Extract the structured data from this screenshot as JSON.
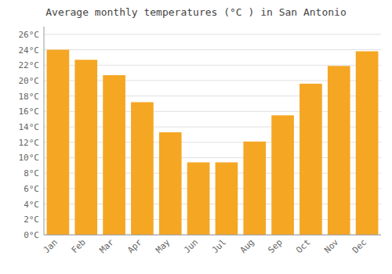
{
  "chart_data": {
    "type": "bar",
    "title": "Average monthly temperatures (°C ) in San Antonio",
    "categories": [
      "Jan",
      "Feb",
      "Mar",
      "Apr",
      "May",
      "Jun",
      "Jul",
      "Aug",
      "Sep",
      "Oct",
      "Nov",
      "Dec"
    ],
    "values": [
      24.0,
      22.7,
      20.7,
      17.2,
      13.3,
      9.4,
      9.4,
      12.1,
      15.5,
      19.6,
      21.9,
      23.8
    ],
    "color": "#F5A623",
    "ylim": [
      0,
      27
    ],
    "yticks": [
      {
        "value": 0,
        "label": "0°C"
      },
      {
        "value": 2,
        "label": "2°C"
      },
      {
        "value": 4,
        "label": "4°C"
      },
      {
        "value": 6,
        "label": "6°C"
      },
      {
        "value": 8,
        "label": "8°C"
      },
      {
        "value": 10,
        "label": "10°C"
      },
      {
        "value": 12,
        "label": "12°C"
      },
      {
        "value": 14,
        "label": "14°C"
      },
      {
        "value": 16,
        "label": "16°C"
      },
      {
        "value": 18,
        "label": "18°C"
      },
      {
        "value": 20,
        "label": "20°C"
      },
      {
        "value": 22,
        "label": "22°C"
      },
      {
        "value": 24,
        "label": "24°C"
      },
      {
        "value": 26,
        "label": "26°C"
      }
    ],
    "grid": true
  }
}
